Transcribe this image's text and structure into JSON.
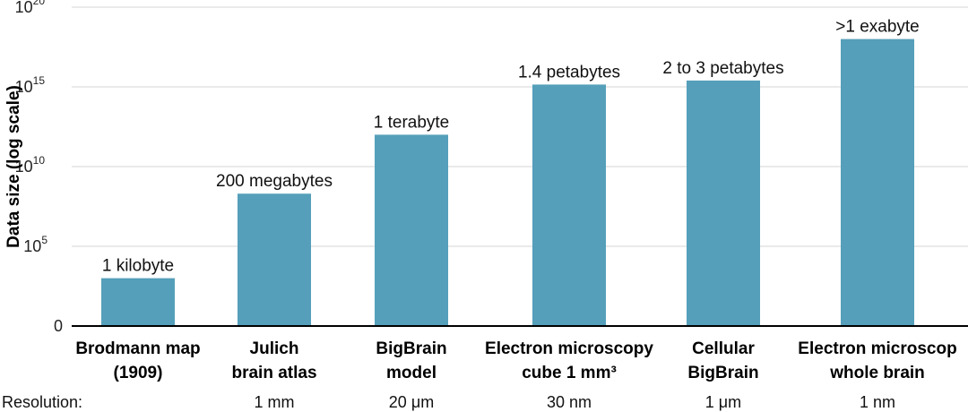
{
  "chart_data": {
    "type": "bar",
    "scale": "log",
    "ylabel": "Data size (log scale)",
    "ylim": [
      1,
      1e+20
    ],
    "yticks": [
      {
        "base": "0",
        "exp": ""
      },
      {
        "base": "10",
        "exp": "5"
      },
      {
        "base": "10",
        "exp": "10"
      },
      {
        "base": "10",
        "exp": "15"
      },
      {
        "base": "10",
        "exp": "20"
      }
    ],
    "grid": true,
    "bar_color": "#559fba",
    "categories": [
      [
        "Brodmann map",
        "(1909)"
      ],
      [
        "Julich",
        "brain atlas"
      ],
      [
        "BigBrain",
        "model"
      ],
      [
        "Electron microscopy",
        "cube 1 mm³"
      ],
      [
        "Cellular",
        "BigBrain"
      ],
      [
        "Electron microscop",
        "whole brain"
      ]
    ],
    "values": [
      1000,
      200000000.0,
      1000000000000.0,
      1400000000000000.0,
      2500000000000000.0,
      1e+18
    ],
    "data_labels": [
      "1 kilobyte",
      "200 megabytes",
      "1 terabyte",
      "1.4 petabytes",
      "2 to 3 petabytes",
      ">1 exabyte"
    ],
    "resolution_label": "Resolution:",
    "resolutions": [
      "",
      "1 mm",
      "20 μm",
      "30 nm",
      "1 μm",
      "1 nm"
    ]
  }
}
